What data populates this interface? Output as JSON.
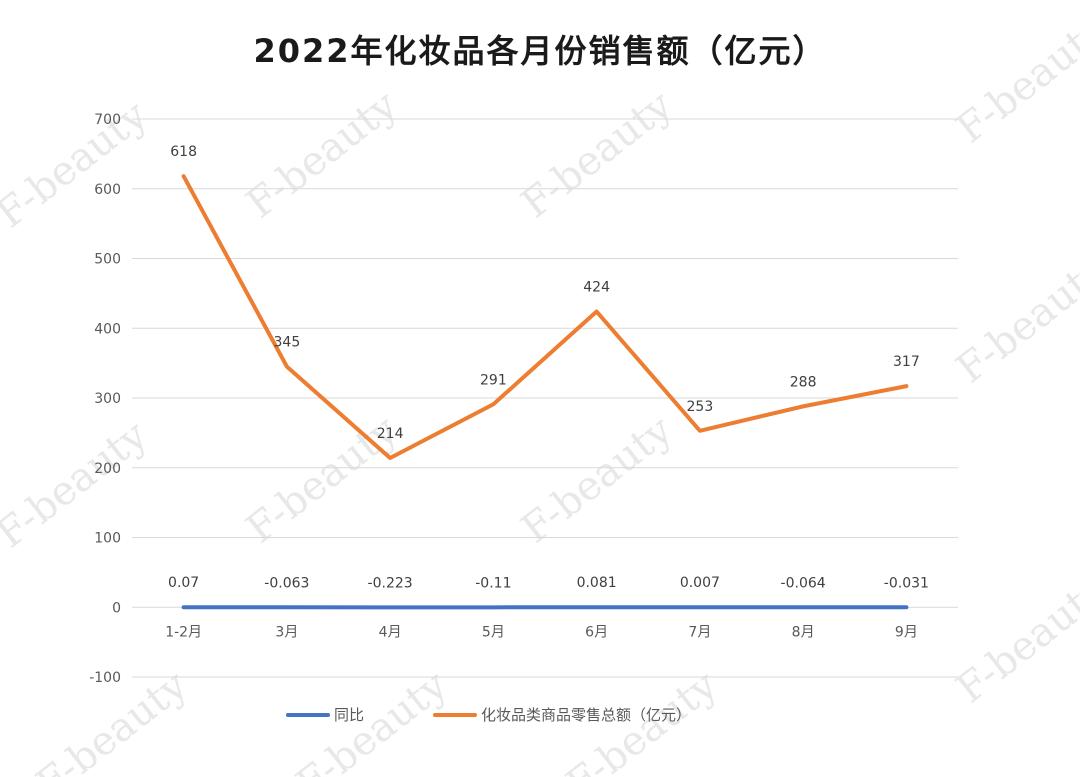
{
  "chart_data": {
    "type": "line",
    "title": "2022年化妆品各月份销售额（亿元）",
    "categories": [
      "1-2月",
      "3月",
      "4月",
      "5月",
      "6月",
      "7月",
      "8月",
      "9月"
    ],
    "series": [
      {
        "name": "同比",
        "color": "#4472c4",
        "values": [
          0.07,
          -0.063,
          -0.223,
          -0.11,
          0.081,
          0.007,
          -0.064,
          -0.031
        ],
        "labels": [
          "0.07",
          "-0.063",
          "-0.223",
          "-0.11",
          "0.081",
          "0.007",
          "-0.064",
          "-0.031"
        ]
      },
      {
        "name": "化妆品类商品零售总额（亿元）",
        "color": "#ed7d31",
        "values": [
          618,
          345,
          214,
          291,
          424,
          253,
          288,
          317
        ],
        "labels": [
          "618",
          "345",
          "214",
          "291",
          "424",
          "253",
          "288",
          "317"
        ]
      }
    ],
    "ylim": [
      -100,
      700
    ],
    "yticks": [
      -100,
      0,
      100,
      200,
      300,
      400,
      500,
      600,
      700
    ],
    "grid": true,
    "legend_position": "bottom",
    "watermark": "F-beauty"
  }
}
